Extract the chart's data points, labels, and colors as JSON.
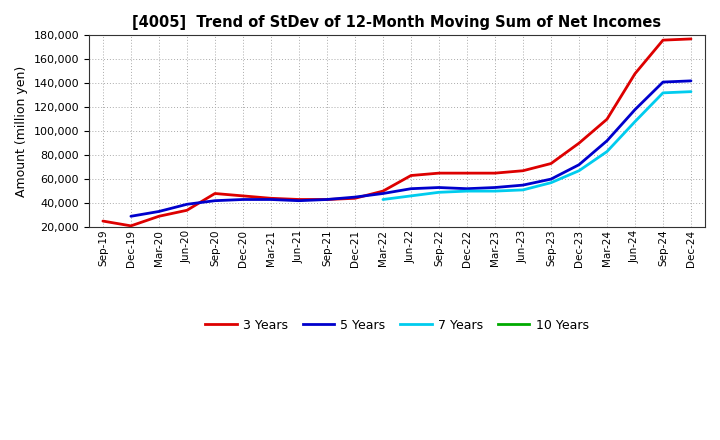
{
  "title": "[4005]  Trend of StDev of 12-Month Moving Sum of Net Incomes",
  "ylabel": "Amount (million yen)",
  "figure_background": "#ffffff",
  "plot_background": "#ffffff",
  "x_labels": [
    "Sep-19",
    "Dec-19",
    "Mar-20",
    "Jun-20",
    "Sep-20",
    "Dec-20",
    "Mar-21",
    "Jun-21",
    "Sep-21",
    "Dec-21",
    "Mar-22",
    "Jun-22",
    "Sep-22",
    "Dec-22",
    "Mar-23",
    "Jun-23",
    "Sep-23",
    "Dec-23",
    "Mar-24",
    "Jun-24",
    "Sep-24",
    "Dec-24"
  ],
  "ylim": [
    20000,
    180000
  ],
  "yticks": [
    20000,
    40000,
    60000,
    80000,
    100000,
    120000,
    140000,
    160000,
    180000
  ],
  "series": {
    "3 Years": {
      "color": "#dd0000",
      "data_x": [
        0,
        1,
        2,
        3,
        4,
        5,
        6,
        7,
        8,
        9,
        10,
        11,
        12,
        13,
        14,
        15,
        16,
        17,
        18,
        19,
        20,
        21
      ],
      "data_y": [
        25000,
        21000,
        29000,
        34000,
        48000,
        46000,
        44000,
        43000,
        43000,
        44000,
        50000,
        63000,
        65000,
        65000,
        65000,
        67000,
        73000,
        90000,
        110000,
        148000,
        176000,
        177000
      ]
    },
    "5 Years": {
      "color": "#0000cc",
      "data_x": [
        1,
        2,
        3,
        4,
        5,
        6,
        7,
        8,
        9,
        10,
        11,
        12,
        13,
        14,
        15,
        16,
        17,
        18,
        19,
        20,
        21
      ],
      "data_y": [
        29000,
        33000,
        39000,
        42000,
        43000,
        43000,
        42000,
        43000,
        45000,
        48000,
        52000,
        53000,
        52000,
        53000,
        55000,
        60000,
        72000,
        92000,
        118000,
        141000,
        142000
      ]
    },
    "7 Years": {
      "color": "#00ccee",
      "data_x": [
        10,
        11,
        12,
        13,
        14,
        15,
        16,
        17,
        18,
        19,
        20,
        21
      ],
      "data_y": [
        43000,
        46000,
        49000,
        50000,
        50000,
        51000,
        57000,
        67000,
        83000,
        108000,
        132000,
        133000
      ]
    },
    "10 Years": {
      "color": "#00aa00",
      "data_x": [],
      "data_y": []
    }
  },
  "legend_entries": [
    "3 Years",
    "5 Years",
    "7 Years",
    "10 Years"
  ],
  "legend_colors": [
    "#dd0000",
    "#0000cc",
    "#00ccee",
    "#00aa00"
  ]
}
